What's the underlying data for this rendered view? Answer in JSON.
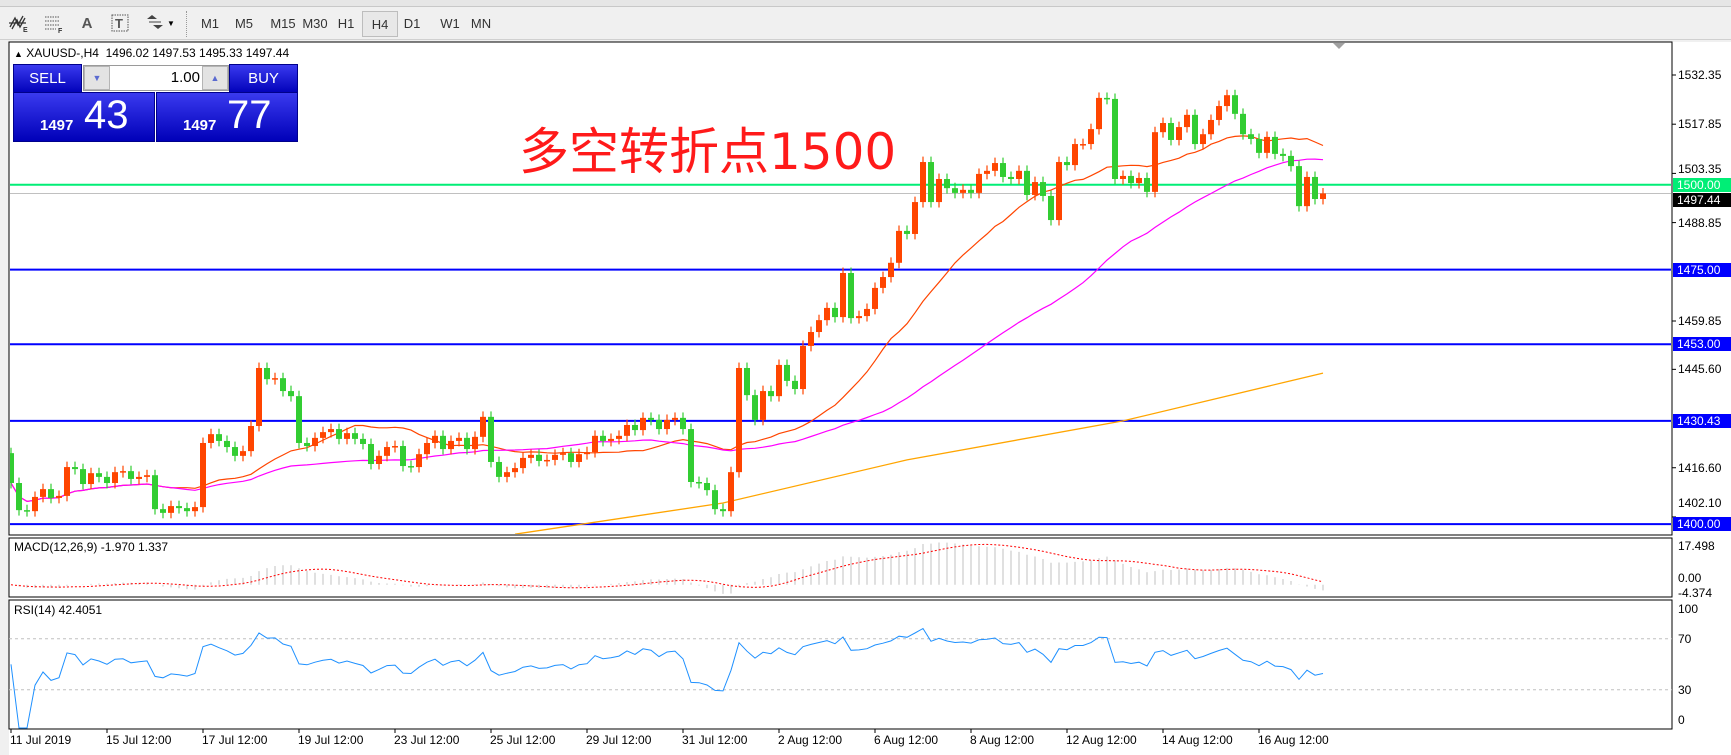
{
  "toolbar": {
    "tools": [
      {
        "icon": "elliott-wave-icon",
        "label": "E"
      },
      {
        "icon": "fibonacci-grid-icon",
        "label": "F"
      },
      {
        "icon": "text-icon",
        "label": "A"
      },
      {
        "icon": "text-label-icon",
        "label": "T"
      },
      {
        "icon": "arrows-dropdown-icon",
        "label": "▼"
      }
    ],
    "timeframes": [
      "M1",
      "M5",
      "M15",
      "M30",
      "H1",
      "H4",
      "D1",
      "W1",
      "MN"
    ],
    "selected_timeframe": "H4"
  },
  "chart": {
    "header": "XAUUSD-,H4  1496.02 1497.53 1495.33 1497.44",
    "annotation": "多空转折点1500",
    "trade_panel": {
      "sell_label": "SELL",
      "buy_label": "BUY",
      "lots": "1.00",
      "sell_price_prefix": "1497",
      "sell_price_big": "43",
      "buy_price_prefix": "1497",
      "buy_price_big": "77"
    },
    "price_ticks": [
      "1532.35",
      "1517.85",
      "1503.35",
      "1488.85",
      "1459.85",
      "1445.60",
      "1416.60",
      "1402.10"
    ],
    "levels": [
      {
        "value": "1500.00",
        "color": "#00ee76"
      },
      {
        "value": "1475.00",
        "color": "#0000ff"
      },
      {
        "value": "1453.00",
        "color": "#0000ff"
      },
      {
        "value": "1430.43",
        "color": "#0000ff"
      },
      {
        "value": "1400.00",
        "color": "#0000ff"
      }
    ],
    "bid_label": "1497.44",
    "macd": {
      "header": "MACD(12,26,9) -1.970 1.337",
      "ticks": [
        "17.498",
        "0.00",
        "-4.374"
      ]
    },
    "rsi": {
      "header": "RSI(14) 42.4051",
      "ticks": [
        "100",
        "70",
        "30",
        "0"
      ]
    },
    "date_labels": [
      "11 Jul 2019",
      "15 Jul 12:00",
      "17 Jul 12:00",
      "19 Jul 12:00",
      "23 Jul 12:00",
      "25 Jul 12:00",
      "29 Jul 12:00",
      "31 Jul 12:00",
      "2 Aug 12:00",
      "6 Aug 12:00",
      "8 Aug 12:00",
      "12 Aug 12:00",
      "14 Aug 12:00",
      "16 Aug 12:00"
    ]
  },
  "chart_data": {
    "type": "candlestick",
    "symbol": "XAUUSD-",
    "timeframe": "H4",
    "ylim": [
      1397.6,
      1542
    ],
    "colors": {
      "up": "#ff4500",
      "down": "#32cd32",
      "ma_fast": "#ff4500",
      "ma_mid": "#ff00ff",
      "ma_slow": "#ffa500",
      "rsi": "#1e90ff",
      "macd_hist": "#c0c0c0",
      "macd_signal": "#ff0000"
    },
    "first_open": 1420.9,
    "closes": [
      1412.1,
      1404.1,
      1403.8,
      1408.0,
      1410.3,
      1407.7,
      1408.3,
      1416.8,
      1416.2,
      1411.8,
      1415.0,
      1413.9,
      1412.1,
      1415.3,
      1415.6,
      1413.3,
      1413.9,
      1414.4,
      1404.4,
      1403.3,
      1405.3,
      1404.7,
      1403.8,
      1405.0,
      1423.9,
      1426.5,
      1424.5,
      1422.7,
      1420.1,
      1421.5,
      1428.9,
      1446.0,
      1442.7,
      1443.0,
      1439.2,
      1437.7,
      1423.9,
      1423.0,
      1425.4,
      1427.1,
      1428.0,
      1425.1,
      1426.8,
      1425.1,
      1423.6,
      1417.7,
      1420.1,
      1422.7,
      1423.0,
      1417.1,
      1416.8,
      1420.6,
      1423.9,
      1426.0,
      1422.1,
      1424.5,
      1425.4,
      1422.1,
      1425.7,
      1431.6,
      1418.3,
      1413.9,
      1415.3,
      1416.5,
      1419.5,
      1420.4,
      1418.6,
      1418.9,
      1420.4,
      1420.9,
      1418.3,
      1420.6,
      1421.2,
      1426.0,
      1424.5,
      1425.1,
      1426.0,
      1429.2,
      1427.7,
      1431.3,
      1430.7,
      1428.0,
      1430.7,
      1431.3,
      1428.0,
      1412.4,
      1412.1,
      1410.0,
      1404.4,
      1403.8,
      1415.3,
      1446.0,
      1438.0,
      1430.7,
      1439.2,
      1437.7,
      1446.9,
      1442.2,
      1439.8,
      1452.5,
      1456.6,
      1460.1,
      1463.7,
      1461.0,
      1474.0,
      1460.7,
      1461.3,
      1463.4,
      1469.6,
      1472.8,
      1477.0,
      1486.4,
      1485.5,
      1494.9,
      1506.7,
      1494.9,
      1501.7,
      1499.0,
      1497.6,
      1498.5,
      1497.6,
      1503.2,
      1504.1,
      1506.4,
      1502.3,
      1501.7,
      1504.1,
      1497.0,
      1500.8,
      1496.7,
      1489.6,
      1506.7,
      1505.8,
      1512.0,
      1512.0,
      1516.4,
      1525.6,
      1525.3,
      1501.7,
      1502.6,
      1500.5,
      1502.0,
      1497.9,
      1515.5,
      1518.2,
      1513.2,
      1517.0,
      1520.6,
      1512.0,
      1514.9,
      1519.1,
      1523.2,
      1526.4,
      1520.9,
      1514.9,
      1513.5,
      1509.4,
      1514.1,
      1509.1,
      1508.5,
      1505.5,
      1493.7,
      1502.3,
      1495.8,
      1497.44
    ],
    "ma_periods": [
      20,
      50
    ],
    "ma_slow_points": [
      [
        63,
        1397.0
      ],
      [
        89,
        1406.2
      ],
      [
        112,
        1418.9
      ],
      [
        139,
        1430.4
      ],
      [
        164,
        1444.5
      ]
    ],
    "macd_params": [
      12,
      26,
      9
    ],
    "rsi_period": 14,
    "rsi_levels": [
      70,
      30
    ],
    "macd_range": [
      -4.374,
      17.498
    ]
  }
}
